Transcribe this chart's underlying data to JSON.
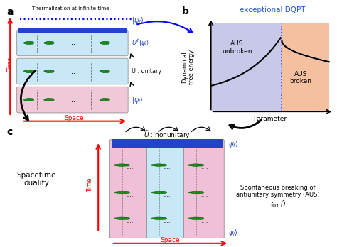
{
  "panel_a_label": "a",
  "panel_b_label": "b",
  "panel_c_label": "c",
  "panel_b_title": "exceptional DQPT",
  "panel_b_xlabel": "Parameter",
  "panel_b_ylabel": "Dynamical\nfree energy",
  "aus_unbroken": "AUS\nunbroken",
  "aus_broken": "AUS\nbroken",
  "thermalization_text": "Thermalization at infinite time",
  "unitary_text": "U : unitary",
  "nonunitary_text": "$\\tilde{U}$ : nonunitary",
  "spacetime_text": "Spacetime\nduality",
  "spontaneous_text": "Spontaneous breaking of\nantiunitary symmetry (AUS)\nfor $\\tilde{U}$",
  "psi_f": "$|\\psi_f\\rangle$",
  "psi_i": "$|\\psi_i\\rangle$",
  "UT_psi": "$U^T|\\psi_i\\rangle$",
  "color_blue_bar": "#2244CC",
  "color_light_blue_band": "#C8E8F8",
  "color_light_pink_band": "#F0C8D8",
  "color_lavender": "#C8C8E8",
  "color_salmon": "#F4C0A0",
  "color_red": "#FF0000",
  "color_blue_dqpt": "#2255DD",
  "color_blue_label": "#2244BB",
  "color_green_dark": "#228B22",
  "color_green_edge": "#006400",
  "color_pink_band_c": "#F0C0D8",
  "color_blue_band_c": "#C8E8F8"
}
